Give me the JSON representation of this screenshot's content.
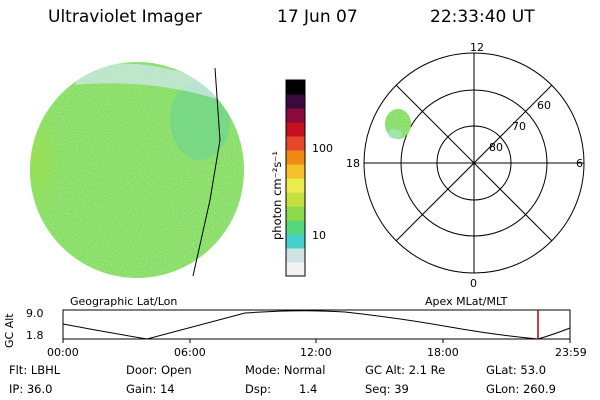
{
  "header": {
    "title": "Ultraviolet Imager",
    "date": "17 Jun 07",
    "time": "22:33:40 UT"
  },
  "colorbar": {
    "label": "photon cm⁻²s⁻¹",
    "ticks": [
      "100",
      "10"
    ],
    "colors": [
      "#f2f2f2",
      "#cfe3e3",
      "#44d0c8",
      "#55d67a",
      "#8ed84b",
      "#c4e040",
      "#ecec50",
      "#f4c12a",
      "#ef8a15",
      "#e4472a",
      "#c40f1f",
      "#8a0a3c",
      "#3a0a3c",
      "#000000"
    ]
  },
  "images": {
    "left_label": "Geographic Lat/Lon",
    "right_label": "Apex MLat/MLT"
  },
  "polar": {
    "mlt_labels": {
      "top": "12",
      "left": "18",
      "right": "6",
      "bottom": "0"
    },
    "lat_labels": [
      "60",
      "70",
      "80"
    ]
  },
  "altitude_plot": {
    "ylabel": "GC Alt",
    "ymax": "9.0",
    "ymin": "1.8",
    "xticks": [
      "00:00",
      "06:00",
      "12:00",
      "18:00",
      "23:59"
    ],
    "marker_color": "#c00000"
  },
  "info": {
    "row1": {
      "filter": "Flt: LBHL",
      "door": "Door: Open",
      "mode": "Mode: Normal",
      "gc_alt": "GC Alt: 2.1 Re",
      "glat": "GLat: 53.0"
    },
    "row2": {
      "ip": "IP: 36.0",
      "gain": "Gain: 14",
      "dsp_label": "Dsp:",
      "dsp_value": "1.4",
      "seq": "Seq: 39",
      "glon": "GLon: 260.9"
    }
  }
}
